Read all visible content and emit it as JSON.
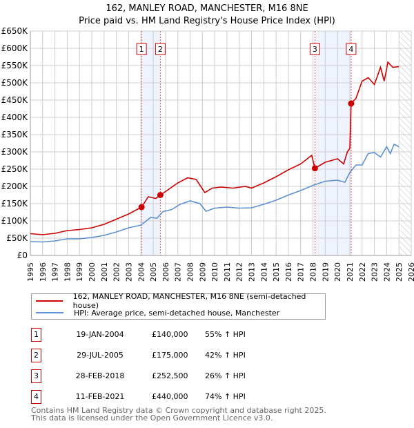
{
  "title": "162, MANLEY ROAD, MANCHESTER, M16 8NE",
  "subtitle": "Price paid vs. HM Land Registry's House Price Index (HPI)",
  "colors": {
    "property": "#cc0000",
    "hpi": "#5b8fd0",
    "shade": "#eef3fd",
    "grid": "#cccccc"
  },
  "chart_data": {
    "type": "line",
    "title": "162, MANLEY ROAD, MANCHESTER, M16 8NE",
    "xlim": [
      1995,
      2026
    ],
    "ylim": [
      0,
      650000
    ],
    "x_ticks": [
      "1995",
      "1996",
      "1997",
      "1998",
      "1999",
      "2000",
      "2001",
      "2002",
      "2003",
      "2004",
      "2005",
      "2006",
      "2007",
      "2008",
      "2009",
      "2010",
      "2011",
      "2012",
      "2013",
      "2014",
      "2015",
      "2016",
      "2017",
      "2018",
      "2019",
      "2020",
      "2021",
      "2022",
      "2023",
      "2024",
      "2025",
      "2026"
    ],
    "y_ticks": [
      {
        "v": 0,
        "label": "£0"
      },
      {
        "v": 50000,
        "label": "£50K"
      },
      {
        "v": 100000,
        "label": "£100K"
      },
      {
        "v": 150000,
        "label": "£150K"
      },
      {
        "v": 200000,
        "label": "£200K"
      },
      {
        "v": 250000,
        "label": "£250K"
      },
      {
        "v": 300000,
        "label": "£300K"
      },
      {
        "v": 350000,
        "label": "£350K"
      },
      {
        "v": 400000,
        "label": "£400K"
      },
      {
        "v": 450000,
        "label": "£450K"
      },
      {
        "v": 500000,
        "label": "£500K"
      },
      {
        "v": 550000,
        "label": "£550K"
      },
      {
        "v": 600000,
        "label": "£600K"
      },
      {
        "v": 650000,
        "label": "£650K"
      }
    ],
    "series": [
      {
        "name": "162, MANLEY ROAD, MANCHESTER, M16 8NE (semi-detached house)",
        "color": "#cc0000",
        "points": [
          [
            1995,
            63000
          ],
          [
            1996,
            60000
          ],
          [
            1997,
            64000
          ],
          [
            1998,
            72000
          ],
          [
            1999,
            75000
          ],
          [
            2000,
            80000
          ],
          [
            2001,
            90000
          ],
          [
            2002,
            105000
          ],
          [
            2003,
            120000
          ],
          [
            2004.05,
            140000
          ],
          [
            2004.6,
            170000
          ],
          [
            2005.2,
            165000
          ],
          [
            2005.58,
            175000
          ],
          [
            2006,
            185000
          ],
          [
            2007,
            210000
          ],
          [
            2007.8,
            225000
          ],
          [
            2008.5,
            220000
          ],
          [
            2009.2,
            182000
          ],
          [
            2009.8,
            195000
          ],
          [
            2010.5,
            198000
          ],
          [
            2011.5,
            195000
          ],
          [
            2012.5,
            200000
          ],
          [
            2013,
            195000
          ],
          [
            2014,
            210000
          ],
          [
            2015,
            228000
          ],
          [
            2016,
            248000
          ],
          [
            2017,
            265000
          ],
          [
            2017.9,
            290000
          ],
          [
            2018.16,
            252500
          ],
          [
            2019,
            270000
          ],
          [
            2020,
            280000
          ],
          [
            2020.5,
            265000
          ],
          [
            2020.8,
            300000
          ],
          [
            2021.0,
            310000
          ],
          [
            2021.11,
            440000
          ],
          [
            2021.5,
            455000
          ],
          [
            2022,
            505000
          ],
          [
            2022.5,
            515000
          ],
          [
            2023,
            495000
          ],
          [
            2023.5,
            545000
          ],
          [
            2023.8,
            505000
          ],
          [
            2024.1,
            560000
          ],
          [
            2024.5,
            545000
          ],
          [
            2025,
            547000
          ]
        ]
      },
      {
        "name": "HPI: Average price, semi-detached house, Manchester",
        "color": "#5b8fd0",
        "points": [
          [
            1995,
            40000
          ],
          [
            1996,
            39000
          ],
          [
            1997,
            42000
          ],
          [
            1998,
            48000
          ],
          [
            1999,
            48000
          ],
          [
            2000,
            52000
          ],
          [
            2001,
            58000
          ],
          [
            2002,
            68000
          ],
          [
            2003,
            80000
          ],
          [
            2004,
            88000
          ],
          [
            2004.8,
            110000
          ],
          [
            2005.3,
            108000
          ],
          [
            2005.8,
            127000
          ],
          [
            2006.5,
            133000
          ],
          [
            2007.2,
            148000
          ],
          [
            2008,
            158000
          ],
          [
            2008.8,
            150000
          ],
          [
            2009.3,
            128000
          ],
          [
            2010,
            137000
          ],
          [
            2011,
            140000
          ],
          [
            2012,
            137000
          ],
          [
            2013,
            138000
          ],
          [
            2014,
            148000
          ],
          [
            2015,
            160000
          ],
          [
            2016,
            175000
          ],
          [
            2017,
            188000
          ],
          [
            2018,
            203000
          ],
          [
            2019,
            215000
          ],
          [
            2020,
            218000
          ],
          [
            2020.6,
            212000
          ],
          [
            2021,
            240000
          ],
          [
            2021.5,
            262000
          ],
          [
            2022,
            262000
          ],
          [
            2022.5,
            295000
          ],
          [
            2023,
            298000
          ],
          [
            2023.5,
            285000
          ],
          [
            2024,
            315000
          ],
          [
            2024.3,
            295000
          ],
          [
            2024.6,
            322000
          ],
          [
            2025,
            315000
          ]
        ]
      }
    ],
    "sales": [
      {
        "n": "1",
        "x": 2004.05,
        "y": 140000
      },
      {
        "n": "2",
        "x": 2005.58,
        "y": 175000
      },
      {
        "n": "3",
        "x": 2018.16,
        "y": 252500
      },
      {
        "n": "4",
        "x": 2021.11,
        "y": 440000
      }
    ],
    "shaded": [
      [
        2004.05,
        2005.58
      ],
      [
        2018.16,
        2021.11
      ]
    ],
    "forecast_from": 2025.0
  },
  "legend": [
    "162, MANLEY ROAD, MANCHESTER, M16 8NE (semi-detached house)",
    "HPI: Average price, semi-detached house, Manchester"
  ],
  "transactions": [
    {
      "n": "1",
      "date": "19-JAN-2004",
      "price": "£140,000",
      "hpi": "55% ↑ HPI"
    },
    {
      "n": "2",
      "date": "29-JUL-2005",
      "price": "£175,000",
      "hpi": "42% ↑ HPI"
    },
    {
      "n": "3",
      "date": "28-FEB-2018",
      "price": "£252,500",
      "hpi": "26% ↑ HPI"
    },
    {
      "n": "4",
      "date": "11-FEB-2021",
      "price": "£440,000",
      "hpi": "74% ↑ HPI"
    }
  ],
  "footer": [
    "Contains HM Land Registry data © Crown copyright and database right 2025.",
    "This data is licensed under the Open Government Licence v3.0."
  ]
}
